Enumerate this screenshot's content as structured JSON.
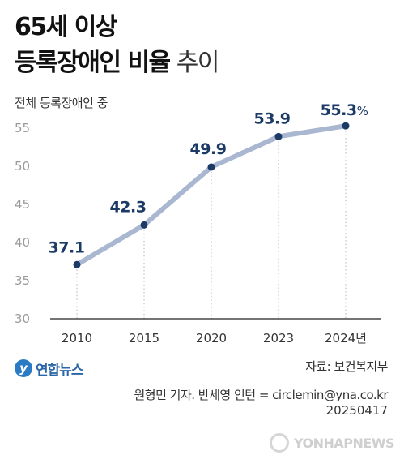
{
  "title": {
    "line1": "65세 이상",
    "line2_bold": "등록장애인 비율",
    "line2_light": "추이"
  },
  "subtitle": "전체 등록장애인 중",
  "chart_data": {
    "type": "line",
    "x": [
      "2010",
      "2015",
      "2020",
      "2023",
      "2024"
    ],
    "x_tick_labels": [
      "2010",
      "2015",
      "2020",
      "2023",
      "2024년"
    ],
    "values": [
      37.1,
      42.3,
      49.9,
      53.9,
      55.3
    ],
    "value_labels": [
      "37.1",
      "42.3",
      "49.9",
      "53.9",
      "55.3"
    ],
    "value_unit": "%",
    "yticks": [
      30,
      35,
      40,
      45,
      50,
      55
    ],
    "ylim": [
      30,
      55
    ],
    "line_color": "#a9b7d1",
    "point_color": "#1b3a66",
    "label_color": "#1b3a66",
    "grid": false
  },
  "footer": {
    "logo_text": "연합뉴스",
    "logo_icon": "yonhap-logo-icon",
    "source": "자료: 보건복지부",
    "credit": "원형민 기자. 반세영 인턴 = circlemin@yna.co.kr",
    "date": "20250417",
    "watermark": "YONHAPNEWS"
  }
}
